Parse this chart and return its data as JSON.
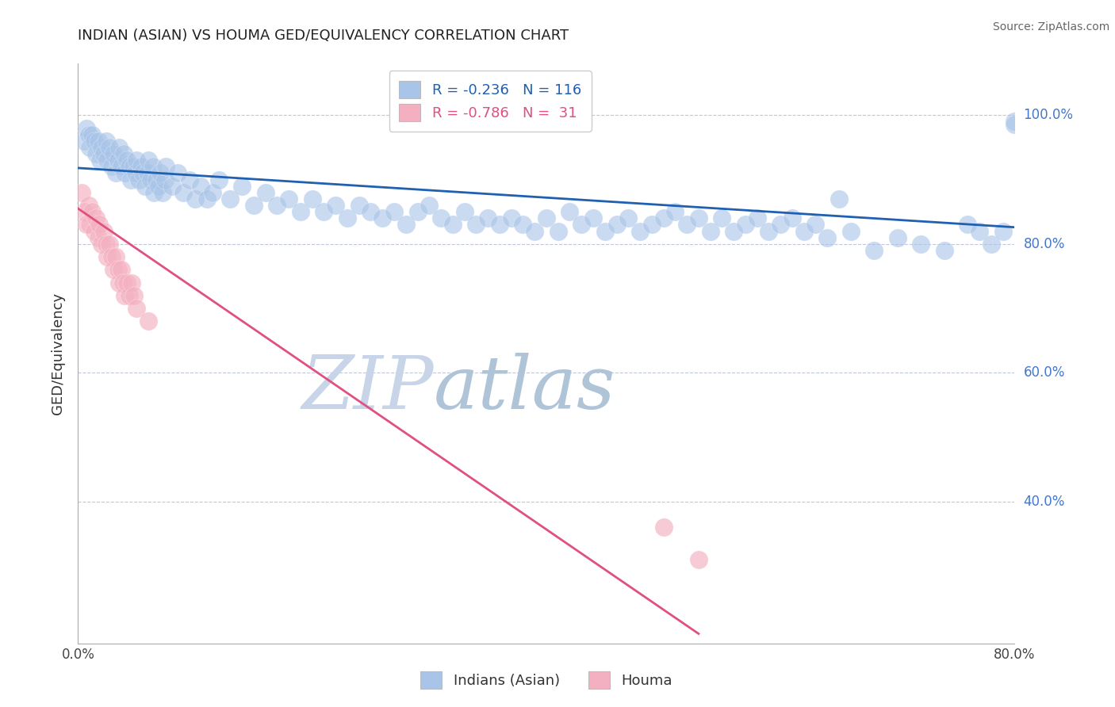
{
  "title": "INDIAN (ASIAN) VS HOUMA GED/EQUIVALENCY CORRELATION CHART",
  "ylabel": "GED/Equivalency",
  "source_text": "Source: ZipAtlas.com",
  "xlim": [
    0.0,
    0.8
  ],
  "ylim": [
    0.18,
    1.08
  ],
  "ytick_values": [
    0.4,
    0.6,
    0.8,
    1.0
  ],
  "ytick_labels": [
    "40.0%",
    "60.0%",
    "80.0%",
    "100.0%"
  ],
  "legend_r_blue": "-0.236",
  "legend_n_blue": "116",
  "legend_r_pink": "-0.786",
  "legend_n_pink": " 31",
  "blue_color": "#a8c4e8",
  "pink_color": "#f4b0c0",
  "blue_line_color": "#2060b0",
  "pink_line_color": "#e05080",
  "grid_color": "#c0c8d8",
  "watermark_zip_color": "#c8d4e8",
  "watermark_atlas_color": "#b8c8d8",
  "blue_scatter": [
    [
      0.005,
      0.96
    ],
    [
      0.007,
      0.98
    ],
    [
      0.009,
      0.97
    ],
    [
      0.01,
      0.95
    ],
    [
      0.012,
      0.97
    ],
    [
      0.014,
      0.96
    ],
    [
      0.015,
      0.94
    ],
    [
      0.017,
      0.96
    ],
    [
      0.019,
      0.93
    ],
    [
      0.02,
      0.95
    ],
    [
      0.022,
      0.94
    ],
    [
      0.024,
      0.96
    ],
    [
      0.025,
      0.93
    ],
    [
      0.027,
      0.95
    ],
    [
      0.029,
      0.92
    ],
    [
      0.03,
      0.94
    ],
    [
      0.032,
      0.91
    ],
    [
      0.034,
      0.93
    ],
    [
      0.035,
      0.95
    ],
    [
      0.037,
      0.92
    ],
    [
      0.039,
      0.94
    ],
    [
      0.04,
      0.91
    ],
    [
      0.042,
      0.93
    ],
    [
      0.044,
      0.92
    ],
    [
      0.045,
      0.9
    ],
    [
      0.047,
      0.92
    ],
    [
      0.049,
      0.91
    ],
    [
      0.05,
      0.93
    ],
    [
      0.052,
      0.9
    ],
    [
      0.054,
      0.92
    ],
    [
      0.055,
      0.91
    ],
    [
      0.057,
      0.89
    ],
    [
      0.059,
      0.91
    ],
    [
      0.06,
      0.93
    ],
    [
      0.062,
      0.9
    ],
    [
      0.064,
      0.92
    ],
    [
      0.065,
      0.88
    ],
    [
      0.067,
      0.9
    ],
    [
      0.069,
      0.89
    ],
    [
      0.07,
      0.91
    ],
    [
      0.072,
      0.88
    ],
    [
      0.074,
      0.9
    ],
    [
      0.075,
      0.92
    ],
    [
      0.08,
      0.89
    ],
    [
      0.085,
      0.91
    ],
    [
      0.09,
      0.88
    ],
    [
      0.095,
      0.9
    ],
    [
      0.1,
      0.87
    ],
    [
      0.105,
      0.89
    ],
    [
      0.11,
      0.87
    ],
    [
      0.115,
      0.88
    ],
    [
      0.12,
      0.9
    ],
    [
      0.13,
      0.87
    ],
    [
      0.14,
      0.89
    ],
    [
      0.15,
      0.86
    ],
    [
      0.16,
      0.88
    ],
    [
      0.17,
      0.86
    ],
    [
      0.18,
      0.87
    ],
    [
      0.19,
      0.85
    ],
    [
      0.2,
      0.87
    ],
    [
      0.21,
      0.85
    ],
    [
      0.22,
      0.86
    ],
    [
      0.23,
      0.84
    ],
    [
      0.24,
      0.86
    ],
    [
      0.25,
      0.85
    ],
    [
      0.26,
      0.84
    ],
    [
      0.27,
      0.85
    ],
    [
      0.28,
      0.83
    ],
    [
      0.29,
      0.85
    ],
    [
      0.3,
      0.86
    ],
    [
      0.31,
      0.84
    ],
    [
      0.32,
      0.83
    ],
    [
      0.33,
      0.85
    ],
    [
      0.34,
      0.83
    ],
    [
      0.35,
      0.84
    ],
    [
      0.36,
      0.83
    ],
    [
      0.37,
      0.84
    ],
    [
      0.38,
      0.83
    ],
    [
      0.39,
      0.82
    ],
    [
      0.4,
      0.84
    ],
    [
      0.41,
      0.82
    ],
    [
      0.42,
      0.85
    ],
    [
      0.43,
      0.83
    ],
    [
      0.44,
      0.84
    ],
    [
      0.45,
      0.82
    ],
    [
      0.46,
      0.83
    ],
    [
      0.47,
      0.84
    ],
    [
      0.48,
      0.82
    ],
    [
      0.49,
      0.83
    ],
    [
      0.5,
      0.84
    ],
    [
      0.51,
      0.85
    ],
    [
      0.52,
      0.83
    ],
    [
      0.53,
      0.84
    ],
    [
      0.54,
      0.82
    ],
    [
      0.55,
      0.84
    ],
    [
      0.56,
      0.82
    ],
    [
      0.57,
      0.83
    ],
    [
      0.58,
      0.84
    ],
    [
      0.59,
      0.82
    ],
    [
      0.6,
      0.83
    ],
    [
      0.61,
      0.84
    ],
    [
      0.62,
      0.82
    ],
    [
      0.63,
      0.83
    ],
    [
      0.64,
      0.81
    ],
    [
      0.65,
      0.87
    ],
    [
      0.66,
      0.82
    ],
    [
      0.68,
      0.79
    ],
    [
      0.7,
      0.81
    ],
    [
      0.72,
      0.8
    ],
    [
      0.74,
      0.79
    ],
    [
      0.76,
      0.83
    ],
    [
      0.77,
      0.82
    ],
    [
      0.78,
      0.8
    ],
    [
      0.79,
      0.82
    ],
    [
      0.8,
      0.99
    ],
    [
      0.8,
      0.985
    ]
  ],
  "pink_scatter": [
    [
      0.003,
      0.88
    ],
    [
      0.005,
      0.85
    ],
    [
      0.007,
      0.83
    ],
    [
      0.009,
      0.86
    ],
    [
      0.01,
      0.83
    ],
    [
      0.012,
      0.85
    ],
    [
      0.014,
      0.82
    ],
    [
      0.015,
      0.84
    ],
    [
      0.017,
      0.81
    ],
    [
      0.018,
      0.83
    ],
    [
      0.02,
      0.8
    ],
    [
      0.022,
      0.82
    ],
    [
      0.024,
      0.8
    ],
    [
      0.025,
      0.78
    ],
    [
      0.027,
      0.8
    ],
    [
      0.029,
      0.78
    ],
    [
      0.03,
      0.76
    ],
    [
      0.032,
      0.78
    ],
    [
      0.034,
      0.76
    ],
    [
      0.035,
      0.74
    ],
    [
      0.037,
      0.76
    ],
    [
      0.038,
      0.74
    ],
    [
      0.04,
      0.72
    ],
    [
      0.042,
      0.74
    ],
    [
      0.044,
      0.72
    ],
    [
      0.046,
      0.74
    ],
    [
      0.048,
      0.72
    ],
    [
      0.05,
      0.7
    ],
    [
      0.06,
      0.68
    ],
    [
      0.5,
      0.36
    ],
    [
      0.53,
      0.31
    ]
  ],
  "blue_trend_x": [
    0.0,
    0.8
  ],
  "blue_trend_y": [
    0.918,
    0.826
  ],
  "pink_trend_x": [
    0.0,
    0.53
  ],
  "pink_trend_y": [
    0.855,
    0.195
  ]
}
